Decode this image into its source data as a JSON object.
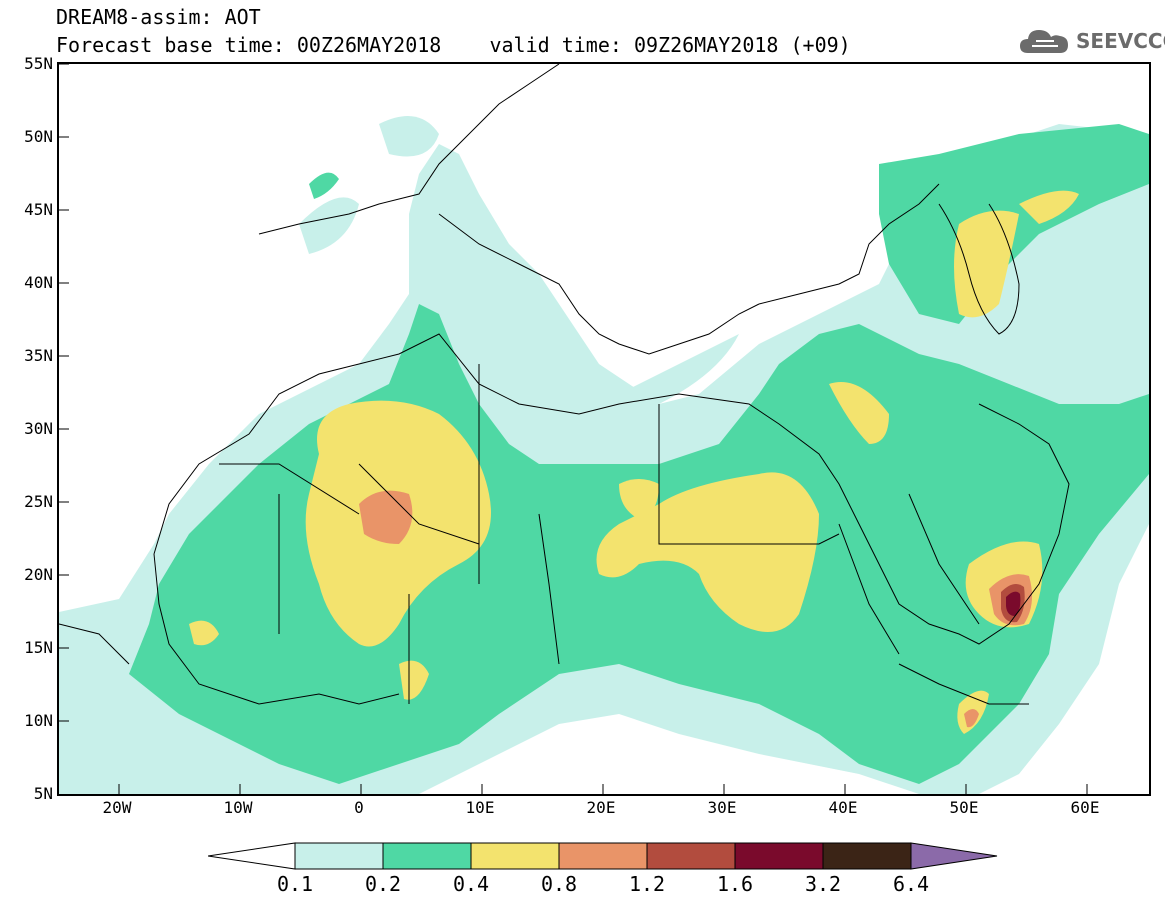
{
  "header": {
    "title": "DREAM8-assim: AOT",
    "subtitle": "Forecast base time: 00Z26MAY2018    valid time: 09Z26MAY2018 (+09)"
  },
  "logo": {
    "text": "SEEVCCC",
    "icon": "cloud-icon"
  },
  "map": {
    "lat_labels": [
      "55N",
      "50N",
      "45N",
      "40N",
      "35N",
      "30N",
      "25N",
      "20N",
      "15N",
      "10N",
      "5N"
    ],
    "lon_labels": [
      "20W",
      "10W",
      "0",
      "10E",
      "20E",
      "30E",
      "40E",
      "50E",
      "60E"
    ],
    "extent": {
      "lon_min": -25,
      "lon_max": 65,
      "lat_min": 5,
      "lat_max": 55
    }
  },
  "colorbar": {
    "labels": [
      "0.1",
      "0.2",
      "0.4",
      "0.8",
      "1.2",
      "1.6",
      "3.2",
      "6.4"
    ],
    "colors": [
      "#c8f0ea",
      "#4fd8a4",
      "#f3e36e",
      "#e99468",
      "#b24c3e",
      "#7a0a2c",
      "#3b2416",
      "#8b6aa9"
    ],
    "under_color": "#ffffff"
  }
}
